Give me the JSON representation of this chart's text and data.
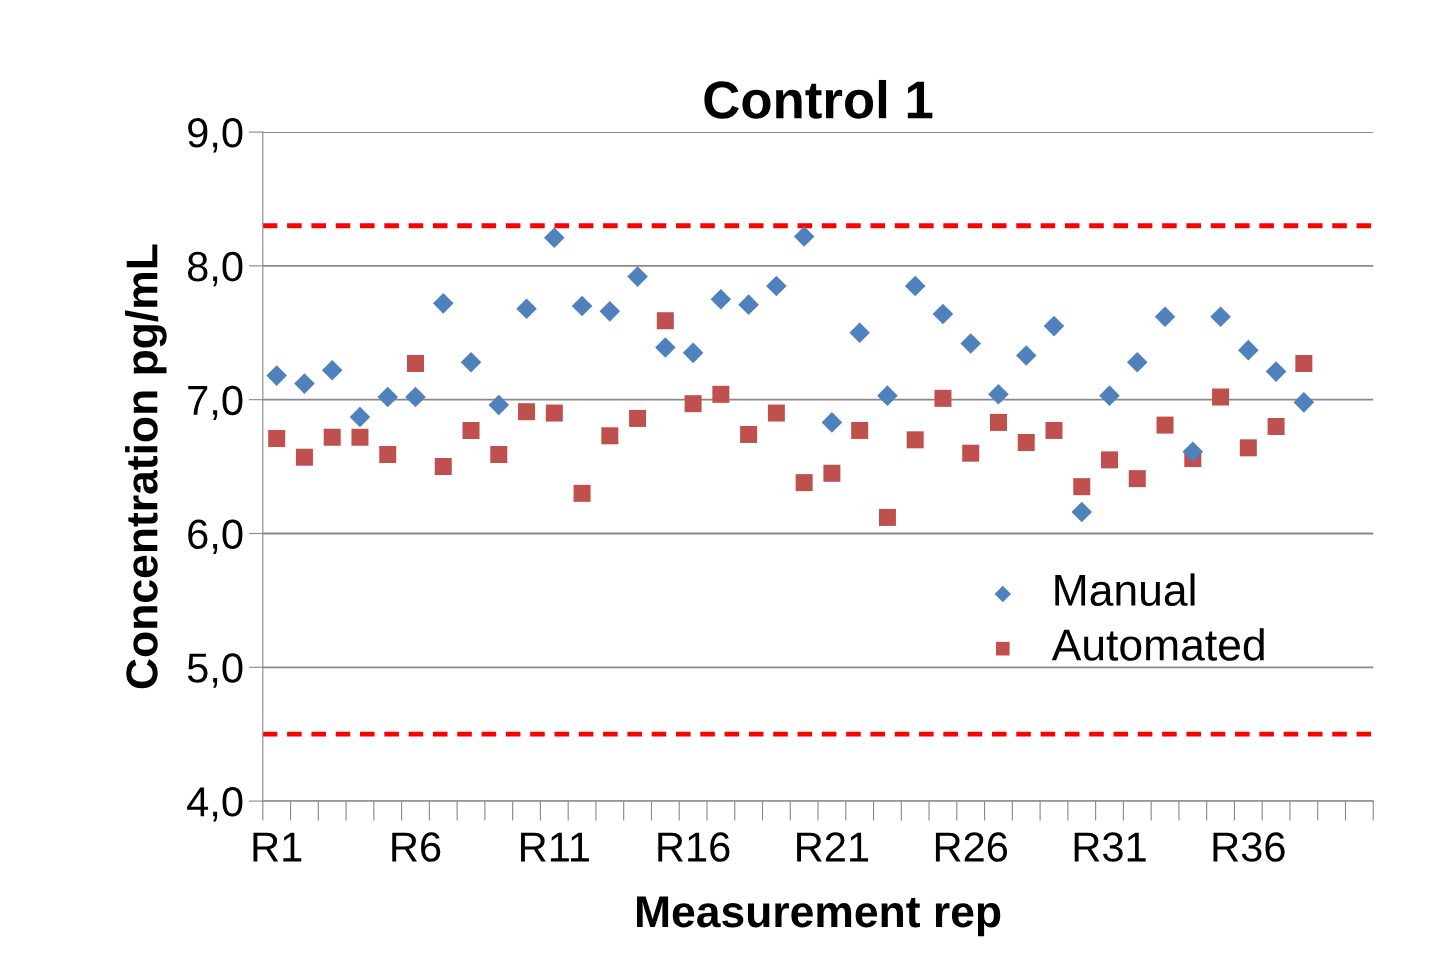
{
  "chart_data": {
    "type": "scatter",
    "title": "Control 1",
    "xlabel": "Measurement rep",
    "ylabel": "Concentration pg/mL",
    "categories": [
      "R1",
      null,
      null,
      null,
      null,
      "R6",
      null,
      null,
      null,
      null,
      "R11",
      null,
      null,
      null,
      null,
      "R16",
      null,
      null,
      null,
      null,
      "R21",
      null,
      null,
      null,
      null,
      "R26",
      null,
      null,
      null,
      null,
      "R31",
      null,
      null,
      null,
      null,
      "R36",
      null,
      null,
      null,
      null
    ],
    "series": [
      {
        "name": "Manual",
        "color": "#4f81bd",
        "marker": "diamond",
        "values": [
          7.18,
          7.12,
          7.22,
          6.87,
          7.02,
          7.02,
          7.72,
          7.28,
          6.96,
          7.68,
          8.21,
          7.7,
          7.66,
          7.92,
          7.39,
          7.35,
          7.75,
          7.71,
          7.85,
          8.22,
          6.83,
          7.5,
          7.03,
          7.85,
          7.64,
          7.42,
          7.04,
          7.33,
          7.55,
          6.16,
          7.03,
          7.28,
          7.62,
          6.61,
          7.62,
          7.37,
          7.21,
          6.98,
          null,
          null
        ]
      },
      {
        "name": "Automated",
        "color": "#c0504d",
        "marker": "square",
        "values": [
          6.71,
          6.57,
          6.72,
          6.72,
          6.59,
          7.27,
          6.5,
          6.77,
          6.59,
          6.91,
          6.9,
          6.3,
          6.73,
          6.86,
          7.59,
          6.97,
          7.04,
          6.74,
          6.9,
          6.38,
          6.45,
          6.77,
          6.12,
          6.7,
          7.01,
          6.6,
          6.83,
          6.68,
          6.77,
          6.35,
          6.55,
          6.41,
          6.81,
          6.56,
          7.02,
          6.64,
          6.8,
          7.27,
          null,
          null
        ]
      }
    ],
    "ylim": [
      4,
      9
    ],
    "yticks": [
      {
        "value": 4,
        "label": "4,0"
      },
      {
        "value": 5,
        "label": "5,0"
      },
      {
        "value": 6,
        "label": "6,0"
      },
      {
        "value": 7,
        "label": "7,0"
      },
      {
        "value": 8,
        "label": "8,0"
      },
      {
        "value": 9,
        "label": "9,0"
      }
    ],
    "ref_lines": [
      {
        "axis": "y",
        "value": 8.3,
        "color": "#ff0000",
        "line_style": "dashed"
      },
      {
        "axis": "y",
        "value": 4.5,
        "color": "#ff0000",
        "line_style": "dashed"
      }
    ],
    "grid": "y",
    "legend": "bottom right"
  }
}
